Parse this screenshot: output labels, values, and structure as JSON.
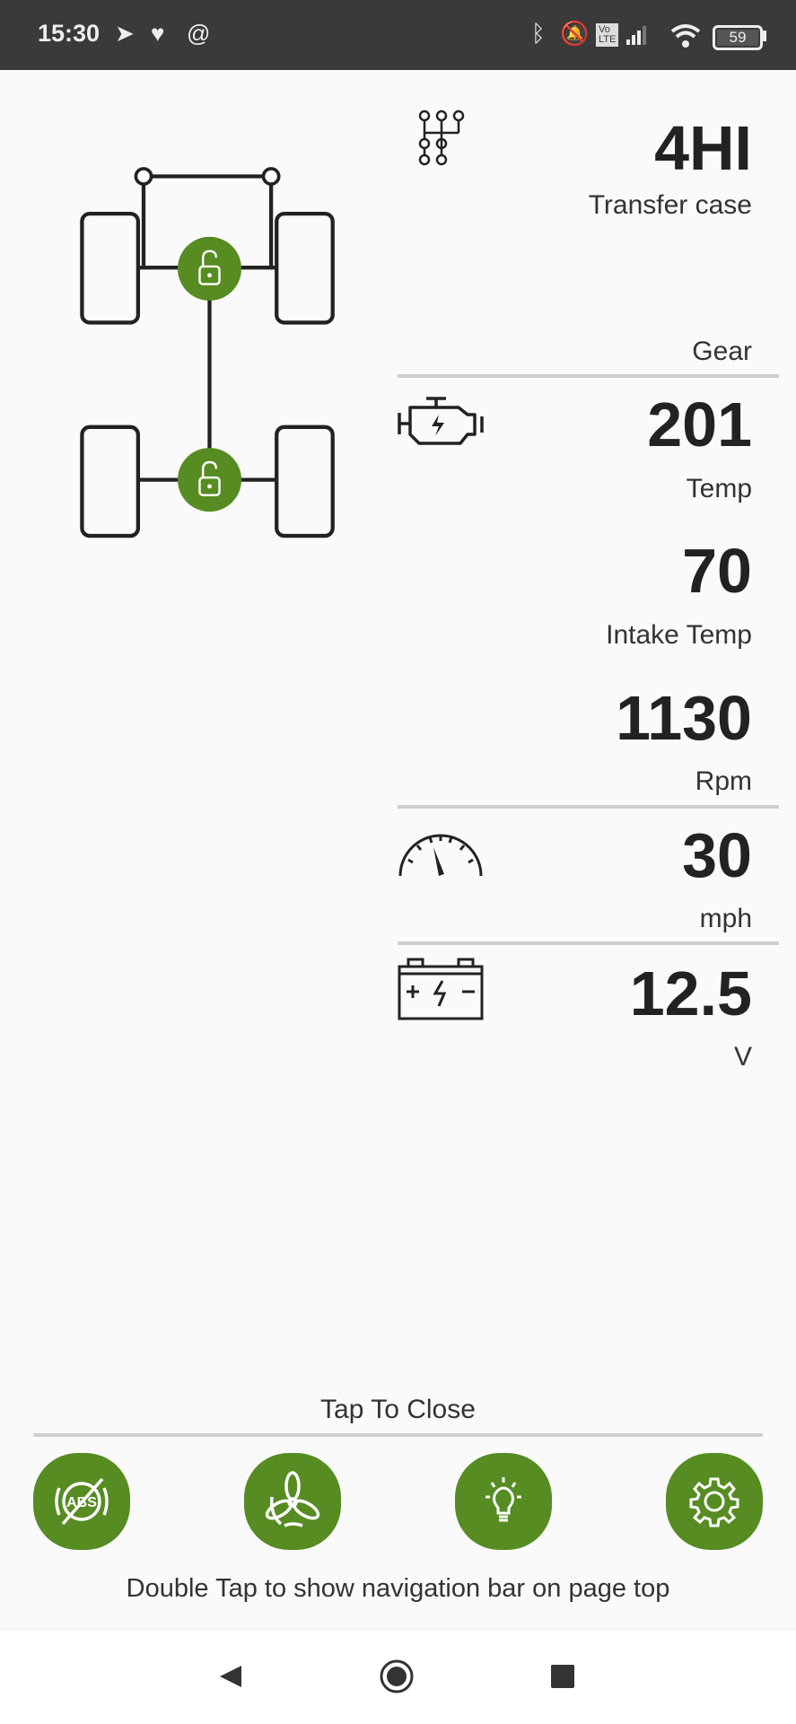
{
  "status_bar": {
    "time": "15:30",
    "left_icons": [
      "telegram-icon",
      "heart-icon",
      "at-icon"
    ],
    "right_icons": [
      "bluetooth-icon",
      "bell-off-icon",
      "volte-icon",
      "signal-icon",
      "wifi-icon",
      "battery-icon"
    ],
    "battery_level": "59"
  },
  "drivetrain": {
    "front_lock": "unlocked",
    "rear_lock": "unlocked",
    "accent_color": "#568c22"
  },
  "readings": {
    "transfer_case": {
      "value": "4HI",
      "label": "Transfer case",
      "icon": "gear-shift-icon"
    },
    "gear": {
      "label": "Gear"
    },
    "engine_temp": {
      "value": "201",
      "label": "Temp",
      "icon": "engine-icon"
    },
    "intake_temp": {
      "value": "70",
      "label": "Intake Temp"
    },
    "rpm": {
      "value": "1130",
      "label": "Rpm"
    },
    "speed": {
      "value": "30",
      "label": "mph",
      "icon": "speedometer-icon"
    },
    "voltage": {
      "value": "12.5",
      "label": "V",
      "icon": "battery-icon"
    }
  },
  "footer": {
    "close_label": "Tap To Close",
    "buttons": [
      {
        "icon": "abs-off-icon"
      },
      {
        "icon": "fan-icon"
      },
      {
        "icon": "light-bulb-icon"
      },
      {
        "icon": "settings-icon"
      }
    ],
    "hint": "Double Tap to show navigation bar on page top"
  },
  "nav_bar": {
    "buttons": [
      "back",
      "home",
      "recents"
    ]
  }
}
